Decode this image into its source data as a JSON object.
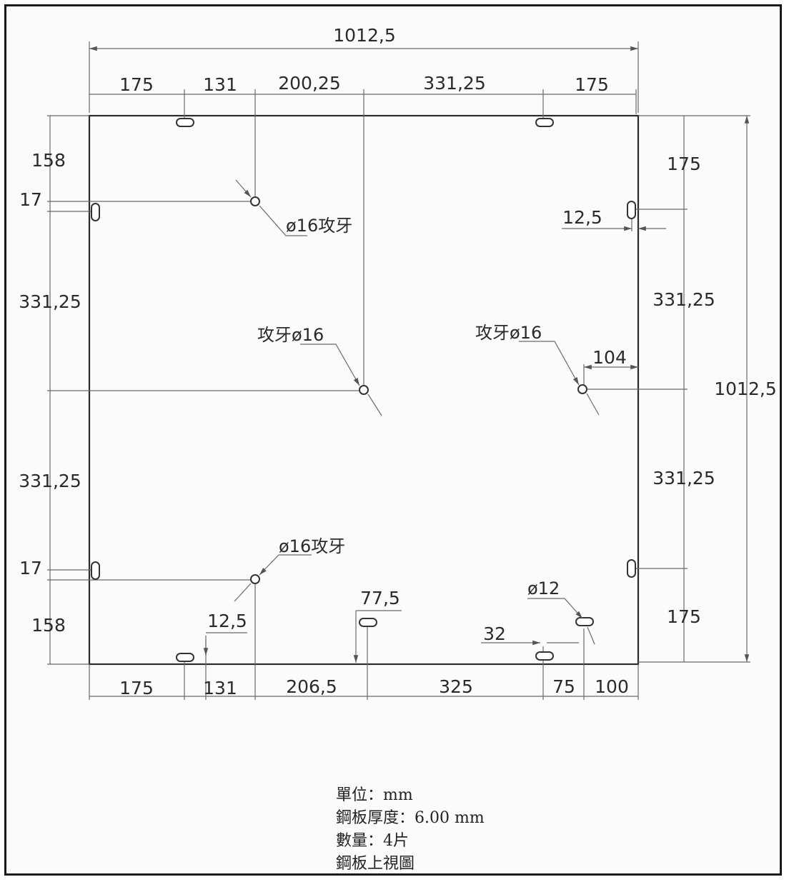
{
  "drawing": {
    "top_dims": {
      "overall": "1012,5",
      "segments": [
        "175",
        "131",
        "200,25",
        "331,25",
        "175"
      ]
    },
    "bottom_dims": {
      "segments": [
        "175",
        "131",
        "206,5",
        "325",
        "75",
        "100"
      ]
    },
    "left_dims": {
      "segments": [
        "158",
        "17",
        "331,25",
        "331,25",
        "17",
        "158"
      ]
    },
    "right_dims": {
      "overall": "1012,5",
      "segments": [
        "175",
        "331,25",
        "331,25",
        "175"
      ],
      "slot_offset": "12,5",
      "hole_offset": "104"
    },
    "annotations": {
      "thread_upper_left": "ø16攻牙",
      "thread_center": "攻牙ø16",
      "thread_right": "攻牙ø16",
      "thread_lower_left": "ø16攻牙",
      "dim_12_5_bottom": "12,5",
      "dim_77_5": "77,5",
      "hole_12": "ø12",
      "dim_32": "32"
    }
  },
  "notes": {
    "unit": "單位：mm",
    "thickness": "鋼板厚度：6.00 mm",
    "quantity": "數量：4片",
    "view": "鋼板上視圖"
  }
}
